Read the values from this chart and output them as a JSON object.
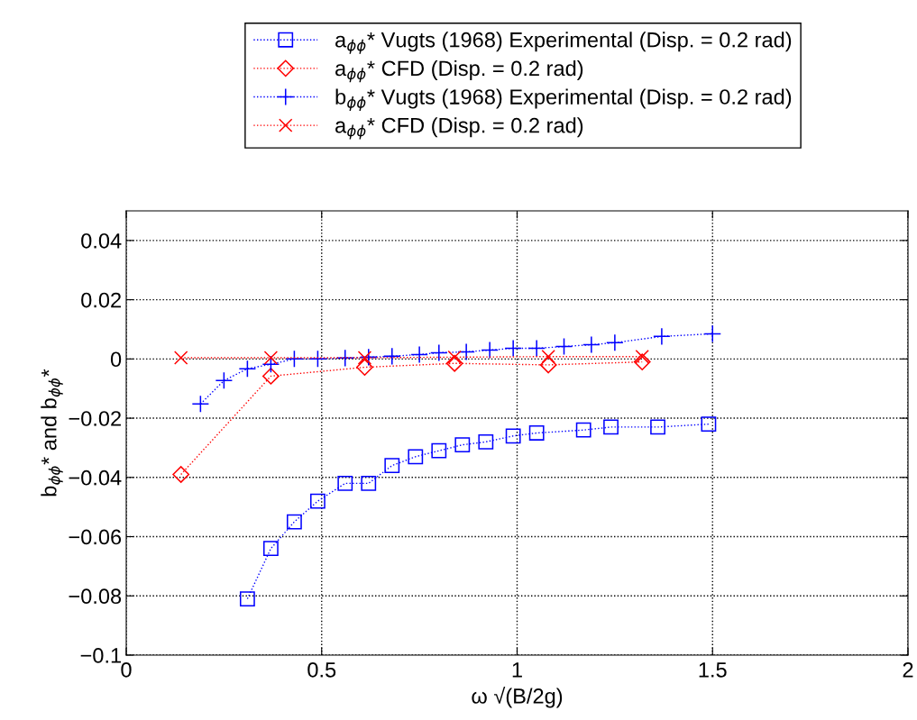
{
  "chart_data": {
    "type": "line",
    "xlabel": "ω √(B/2g)",
    "ylabel": "b$_{ϕϕ}$* and b$_{ϕϕ}$*",
    "xlim": [
      0,
      2
    ],
    "xticks": [
      0,
      0.5,
      1,
      1.5,
      2
    ],
    "ylim": [
      -0.1,
      0.05
    ],
    "yticks": [
      {
        "value": -0.1,
        "label": "−0.1"
      },
      {
        "value": -0.08,
        "label": "−0.08"
      },
      {
        "value": -0.06,
        "label": "−0.06"
      },
      {
        "value": -0.04,
        "label": "−0.04"
      },
      {
        "value": -0.02,
        "label": "−0.02"
      },
      0,
      0.02,
      0.04
    ],
    "grid": true,
    "legend": "top",
    "line_style": "dotted",
    "series": [
      {
        "name": "a$_{ϕϕ}$* Vugts (1968) Experimental (Disp. = 0.2 rad)",
        "color": "#0000ff",
        "marker": "square",
        "x": [
          0.31,
          0.37,
          0.43,
          0.49,
          0.56,
          0.62,
          0.68,
          0.74,
          0.8,
          0.86,
          0.92,
          0.99,
          1.05,
          1.17,
          1.24,
          1.36,
          1.49
        ],
        "values": [
          -0.081,
          -0.064,
          -0.055,
          -0.048,
          -0.042,
          -0.042,
          -0.036,
          -0.033,
          -0.031,
          -0.029,
          -0.028,
          -0.026,
          -0.025,
          -0.024,
          -0.023,
          -0.023,
          -0.022
        ]
      },
      {
        "name": "a$_{ϕϕ}$* CFD (Disp. = 0.2 rad)",
        "color": "#ff0000",
        "marker": "diamond",
        "x": [
          0.14,
          0.37,
          0.61,
          0.84,
          1.08,
          1.32
        ],
        "values": [
          -0.039,
          -0.0058,
          -0.0028,
          -0.0015,
          -0.002,
          -0.001
        ]
      },
      {
        "name": "b$_{ϕϕ}$* Vugts (1968) Experimental (Disp. = 0.2 rad)",
        "color": "#0000ff",
        "marker": "plus",
        "x": [
          0.19,
          0.25,
          0.31,
          0.37,
          0.43,
          0.49,
          0.56,
          0.62,
          0.68,
          0.75,
          0.8,
          0.87,
          0.93,
          0.99,
          1.05,
          1.12,
          1.19,
          1.25,
          1.37,
          1.5
        ],
        "values": [
          -0.0152,
          -0.0073,
          -0.0033,
          -0.0018,
          0,
          0,
          0.0003,
          0.0006,
          0.0009,
          0.0015,
          0.0021,
          0.0024,
          0.003,
          0.0036,
          0.0036,
          0.0042,
          0.0048,
          0.0055,
          0.0076,
          0.0085
        ]
      },
      {
        "name": "a$_{ϕϕ}$* CFD (Disp. = 0.2 rad)",
        "color": "#ff0000",
        "marker": "cross",
        "x": [
          0.14,
          0.37,
          0.61,
          0.84,
          1.08,
          1.32
        ],
        "values": [
          0.0004,
          0.0004,
          0.0004,
          0.0006,
          0.0008,
          0.0008
        ]
      }
    ]
  }
}
